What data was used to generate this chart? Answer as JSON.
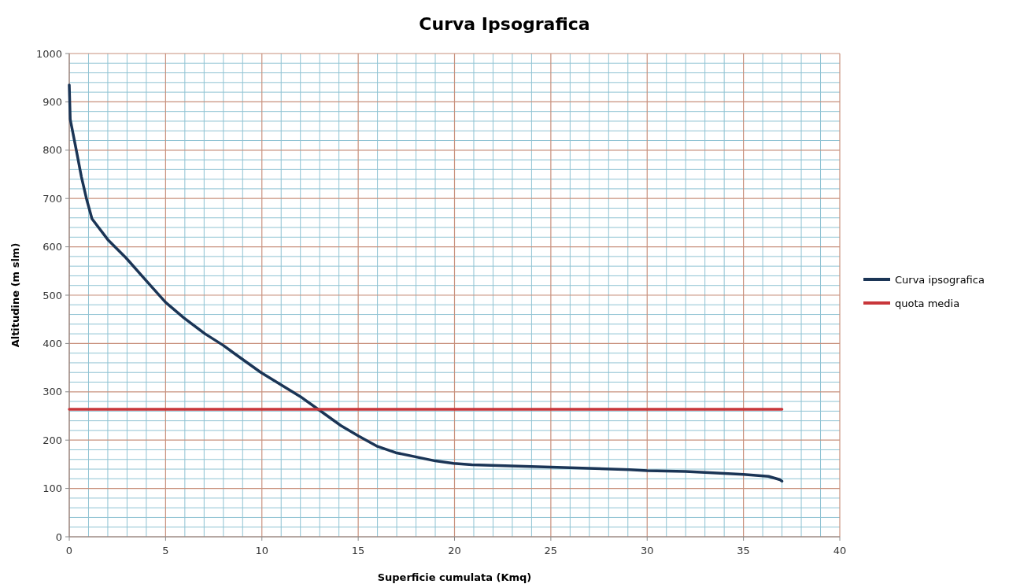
{
  "chart_data": {
    "type": "line",
    "title": "Curva Ipsografica",
    "xlabel": "Superficie cumulata (Kmq)",
    "ylabel": "Altitudine (m slm)",
    "xlim": [
      0,
      40
    ],
    "xticks": [
      0,
      {
        "value": 1,
        "label": null
      },
      {
        "value": 2,
        "label": null
      },
      {
        "value": 3,
        "label": null
      },
      {
        "value": 4,
        "label": null
      },
      5,
      {
        "value": 6,
        "label": null
      },
      {
        "value": 7,
        "label": null
      },
      {
        "value": 8,
        "label": null
      },
      {
        "value": 9,
        "label": null
      },
      10,
      {
        "value": 11,
        "label": null
      },
      {
        "value": 12,
        "label": null
      },
      {
        "value": 13,
        "label": null
      },
      {
        "value": 14,
        "label": null
      },
      15,
      {
        "value": 16,
        "label": null
      },
      {
        "value": 17,
        "label": null
      },
      {
        "value": 18,
        "label": null
      },
      {
        "value": 19,
        "label": null
      },
      20,
      {
        "value": 21,
        "label": null
      },
      {
        "value": 22,
        "label": null
      },
      {
        "value": 23,
        "label": null
      },
      {
        "value": 24,
        "label": null
      },
      25,
      {
        "value": 26,
        "label": null
      },
      {
        "value": 27,
        "label": null
      },
      {
        "value": 28,
        "label": null
      },
      {
        "value": 29,
        "label": null
      },
      30,
      {
        "value": 31,
        "label": null
      },
      {
        "value": 32,
        "label": null
      },
      {
        "value": 33,
        "label": null
      },
      {
        "value": 34,
        "label": null
      },
      35,
      {
        "value": 36,
        "label": null
      },
      {
        "value": 37,
        "label": null
      },
      {
        "value": 38,
        "label": null
      },
      {
        "value": 39,
        "label": null
      },
      40
    ],
    "ylim": [
      0,
      1000
    ],
    "yticks": [
      0,
      {
        "value": 20,
        "label": null
      },
      {
        "value": 40,
        "label": null
      },
      {
        "value": 60,
        "label": null
      },
      {
        "value": 80,
        "label": null
      },
      100,
      {
        "value": 120,
        "label": null
      },
      {
        "value": 140,
        "label": null
      },
      {
        "value": 160,
        "label": null
      },
      {
        "value": 180,
        "label": null
      },
      200,
      {
        "value": 220,
        "label": null
      },
      {
        "value": 240,
        "label": null
      },
      {
        "value": 260,
        "label": null
      },
      {
        "value": 280,
        "label": null
      },
      300,
      {
        "value": 320,
        "label": null
      },
      {
        "value": 340,
        "label": null
      },
      {
        "value": 360,
        "label": null
      },
      {
        "value": 380,
        "label": null
      },
      400,
      {
        "value": 420,
        "label": null
      },
      {
        "value": 440,
        "label": null
      },
      {
        "value": 460,
        "label": null
      },
      {
        "value": 480,
        "label": null
      },
      500,
      {
        "value": 520,
        "label": null
      },
      {
        "value": 540,
        "label": null
      },
      {
        "value": 560,
        "label": null
      },
      {
        "value": 580,
        "label": null
      },
      600,
      {
        "value": 620,
        "label": null
      },
      {
        "value": 640,
        "label": null
      },
      {
        "value": 660,
        "label": null
      },
      {
        "value": 680,
        "label": null
      },
      700,
      {
        "value": 720,
        "label": null
      },
      {
        "value": 740,
        "label": null
      },
      {
        "value": 760,
        "label": null
      },
      {
        "value": 780,
        "label": null
      },
      800,
      {
        "value": 820,
        "label": null
      },
      {
        "value": 840,
        "label": null
      },
      {
        "value": 860,
        "label": null
      },
      {
        "value": 880,
        "label": null
      },
      900,
      {
        "value": 920,
        "label": null
      },
      {
        "value": 940,
        "label": null
      },
      {
        "value": 960,
        "label": null
      },
      {
        "value": 980,
        "label": null
      },
      1000
    ],
    "grid": true,
    "legend": "right",
    "marker": "none",
    "series": [
      {
        "name": "Curva ipsografica",
        "color": "#1b3556",
        "x": [
          0,
          0.05,
          0.37,
          0.63,
          0.91,
          1.18,
          2,
          2.95,
          4.04,
          5,
          5.95,
          7.05,
          8,
          8.65,
          9.95,
          12,
          12.95,
          14.1,
          15,
          16,
          16.95,
          19,
          19.95,
          20.9,
          25,
          29.1,
          30,
          32,
          35,
          36.3,
          36.9,
          37
        ],
        "values": [
          935,
          864,
          799,
          745,
          697,
          658,
          615,
          577,
          528,
          485,
          453,
          420,
          396,
          377,
          340,
          290,
          263,
          230,
          209,
          187,
          174,
          157,
          152,
          149,
          144,
          139,
          137,
          135,
          129,
          125,
          118,
          115
        ]
      },
      {
        "name": "quota media",
        "color": "#c8363a",
        "x": [
          0,
          37
        ],
        "values": [
          264,
          264
        ]
      }
    ]
  }
}
